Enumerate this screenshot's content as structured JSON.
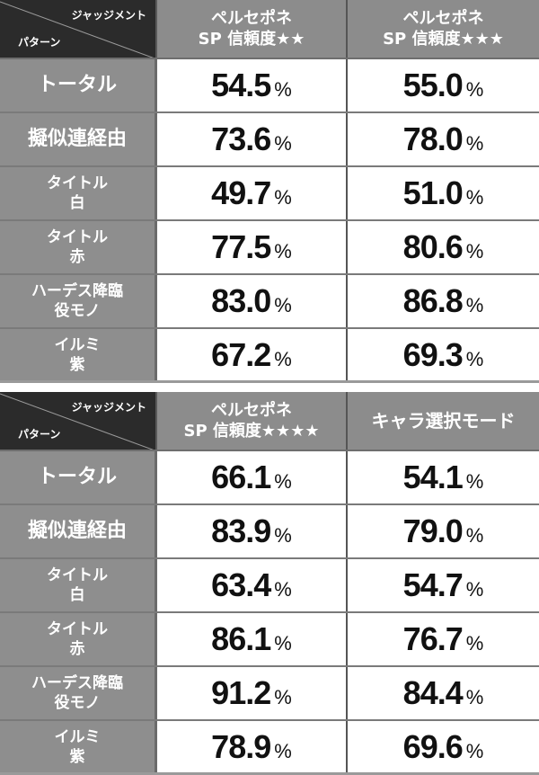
{
  "tables": [
    {
      "corner": {
        "judgement": "ジャッジメント",
        "pattern": "パターン"
      },
      "columns": [
        {
          "line1": "ペルセポネ",
          "line2": "SP 信頼度★★"
        },
        {
          "line1": "ペルセポネ",
          "line2": "SP 信頼度★★★"
        }
      ],
      "rows": [
        {
          "label1": "トータル",
          "label2": "",
          "v1": "54.5",
          "v2": "55.0"
        },
        {
          "label1": "擬似連経由",
          "label2": "",
          "v1": "73.6",
          "v2": "78.0"
        },
        {
          "label1": "タイトル",
          "label2": "白",
          "v1": "49.7",
          "v2": "51.0"
        },
        {
          "label1": "タイトル",
          "label2": "赤",
          "v1": "77.5",
          "v2": "80.6"
        },
        {
          "label1": "ハーデス降臨",
          "label2": "役モノ",
          "v1": "83.0",
          "v2": "86.8"
        },
        {
          "label1": "イルミ",
          "label2": "紫",
          "v1": "67.2",
          "v2": "69.3"
        }
      ]
    },
    {
      "corner": {
        "judgement": "ジャッジメント",
        "pattern": "パターン"
      },
      "columns": [
        {
          "line1": "ペルセポネ",
          "line2": "SP 信頼度★★★★"
        },
        {
          "line1": "キャラ選択モード",
          "line2": ""
        }
      ],
      "rows": [
        {
          "label1": "トータル",
          "label2": "",
          "v1": "66.1",
          "v2": "54.1"
        },
        {
          "label1": "擬似連経由",
          "label2": "",
          "v1": "83.9",
          "v2": "79.0"
        },
        {
          "label1": "タイトル",
          "label2": "白",
          "v1": "63.4",
          "v2": "54.7"
        },
        {
          "label1": "タイトル",
          "label2": "赤",
          "v1": "86.1",
          "v2": "76.7"
        },
        {
          "label1": "ハーデス降臨",
          "label2": "役モノ",
          "v1": "91.2",
          "v2": "84.4"
        },
        {
          "label1": "イルミ",
          "label2": "紫",
          "v1": "78.9",
          "v2": "69.6"
        }
      ]
    }
  ],
  "unit": "%"
}
